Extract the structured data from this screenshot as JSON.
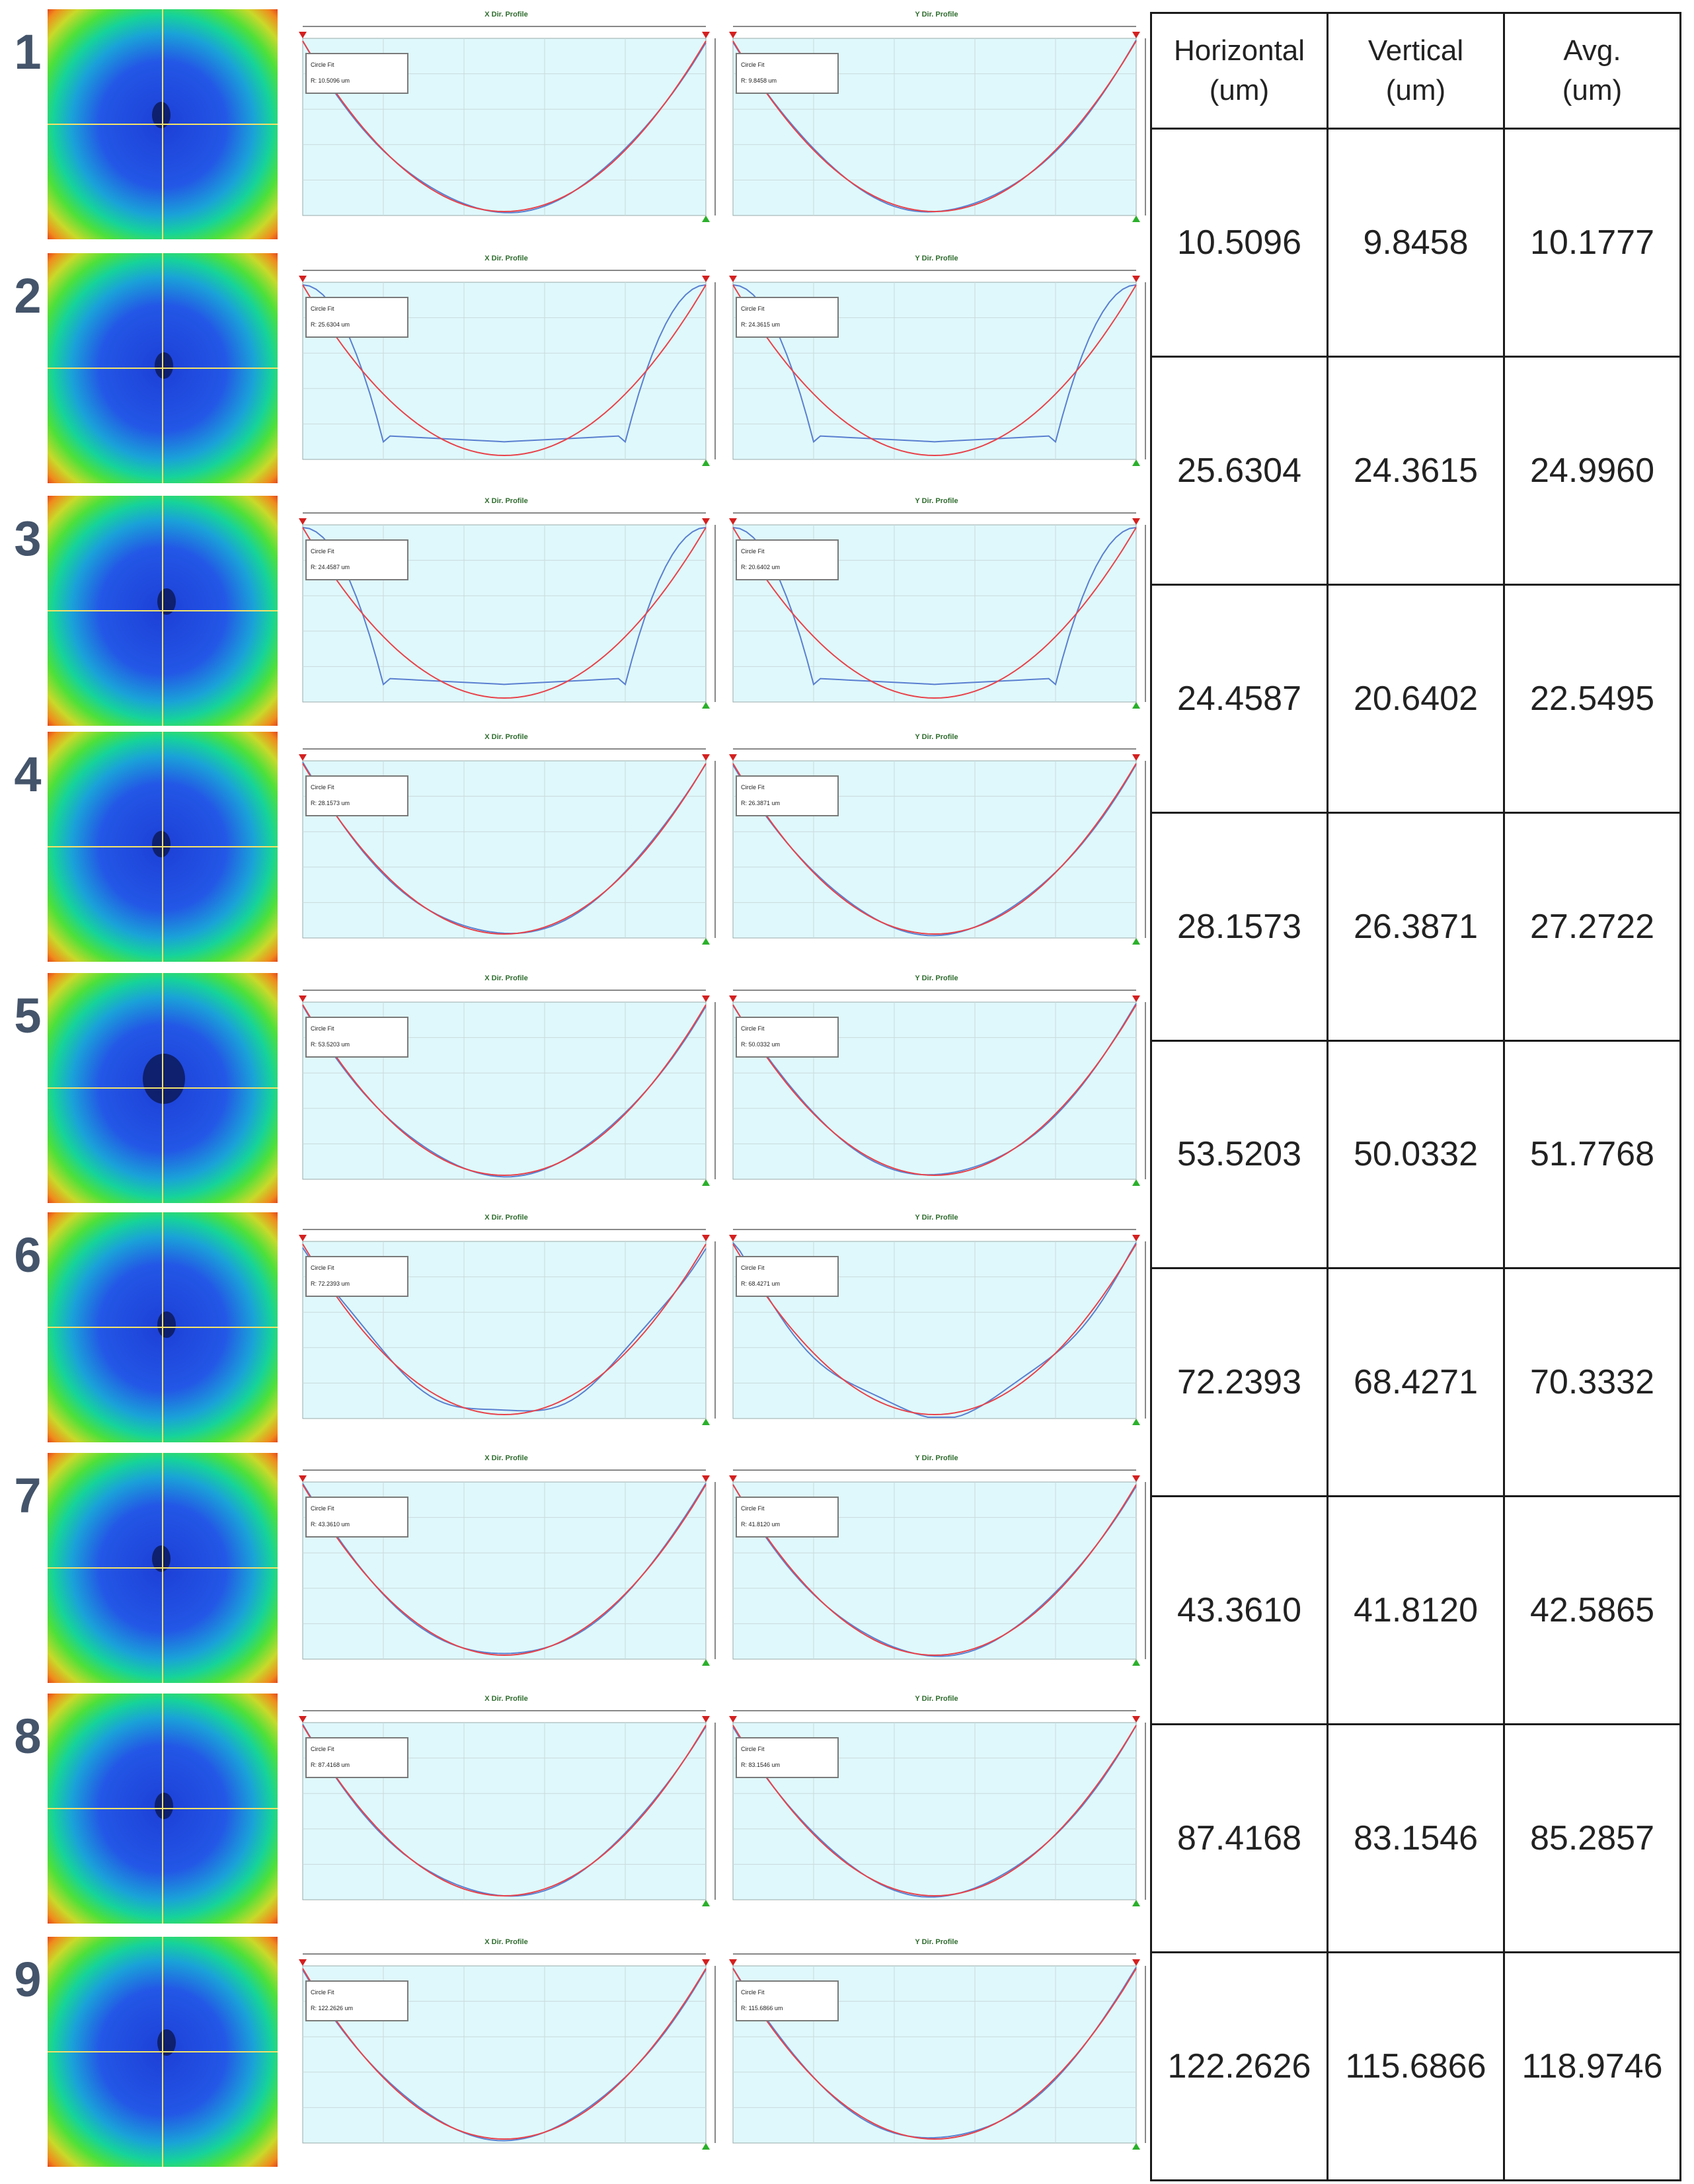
{
  "table": {
    "headers": [
      {
        "line1": "Horizontal",
        "line2": "(um)"
      },
      {
        "line1": "Vertical",
        "line2": "(um)"
      },
      {
        "line1": "Avg.",
        "line2": "(um)"
      }
    ],
    "rows": [
      {
        "h": "10.5096",
        "v": "9.8458",
        "avg": "10.1777"
      },
      {
        "h": "25.6304",
        "v": "24.3615",
        "avg": "24.9960"
      },
      {
        "h": "24.4587",
        "v": "20.6402",
        "avg": "22.5495"
      },
      {
        "h": "28.1573",
        "v": "26.3871",
        "avg": "27.2722"
      },
      {
        "h": "53.5203",
        "v": "50.0332",
        "avg": "51.7768"
      },
      {
        "h": "72.2393",
        "v": "68.4271",
        "avg": "70.3332"
      },
      {
        "h": "43.3610",
        "v": "41.8120",
        "avg": "42.5865"
      },
      {
        "h": "87.4168",
        "v": "83.1546",
        "avg": "85.2857"
      },
      {
        "h": "122.2626",
        "v": "115.6866",
        "avg": "118.9746"
      }
    ]
  },
  "samples": [
    {
      "num": "1",
      "x_title": "X Dir. Profile",
      "y_title": "Y Dir. Profile",
      "fit_label": "Circle Fit",
      "x_fit": "R: 10.5096 um",
      "y_fit": "R: 9.8458 um",
      "profile_shape": "smooth"
    },
    {
      "num": "2",
      "x_title": "X Dir. Profile",
      "y_title": "Y Dir. Profile",
      "fit_label": "Circle Fit",
      "x_fit": "R: 25.6304 um",
      "y_fit": "R: 24.3615 um",
      "profile_shape": "flat"
    },
    {
      "num": "3",
      "x_title": "X Dir. Profile",
      "y_title": "Y Dir. Profile",
      "fit_label": "Circle Fit",
      "x_fit": "R: 24.4587 um",
      "y_fit": "R: 20.6402 um",
      "profile_shape": "flat"
    },
    {
      "num": "4",
      "x_title": "X Dir. Profile",
      "y_title": "Y Dir. Profile",
      "fit_label": "Circle Fit",
      "x_fit": "R: 28.1573 um",
      "y_fit": "R: 26.3871 um",
      "profile_shape": "smooth"
    },
    {
      "num": "5",
      "x_title": "X Dir. Profile",
      "y_title": "Y Dir. Profile",
      "fit_label": "Circle Fit",
      "x_fit": "R: 53.5203 um",
      "y_fit": "R: 50.0332 um",
      "profile_shape": "smooth"
    },
    {
      "num": "6",
      "x_title": "X Dir. Profile",
      "y_title": "Y Dir. Profile",
      "fit_label": "Circle Fit",
      "x_fit": "R: 72.2393 um",
      "y_fit": "R: 68.4271 um",
      "profile_shape": "bumpy"
    },
    {
      "num": "7",
      "x_title": "X Dir. Profile",
      "y_title": "Y Dir. Profile",
      "fit_label": "Circle Fit",
      "x_fit": "R: 43.3610 um",
      "y_fit": "R: 41.8120 um",
      "profile_shape": "smooth"
    },
    {
      "num": "8",
      "x_title": "X Dir. Profile",
      "y_title": "Y Dir. Profile",
      "fit_label": "Circle Fit",
      "x_fit": "R: 87.4168 um",
      "y_fit": "R: 83.1546 um",
      "profile_shape": "smooth"
    },
    {
      "num": "9",
      "x_title": "X Dir. Profile",
      "y_title": "Y Dir. Profile",
      "fit_label": "Circle Fit",
      "x_fit": "R: 122.2626 um",
      "y_fit": "R: 115.6866 um",
      "profile_shape": "smooth"
    }
  ],
  "colors": {
    "plot_bg": "#dff8fb",
    "fit_curve": "#e8424a",
    "measured_curve": "#5a7fd0",
    "row_number": "#44546a"
  }
}
